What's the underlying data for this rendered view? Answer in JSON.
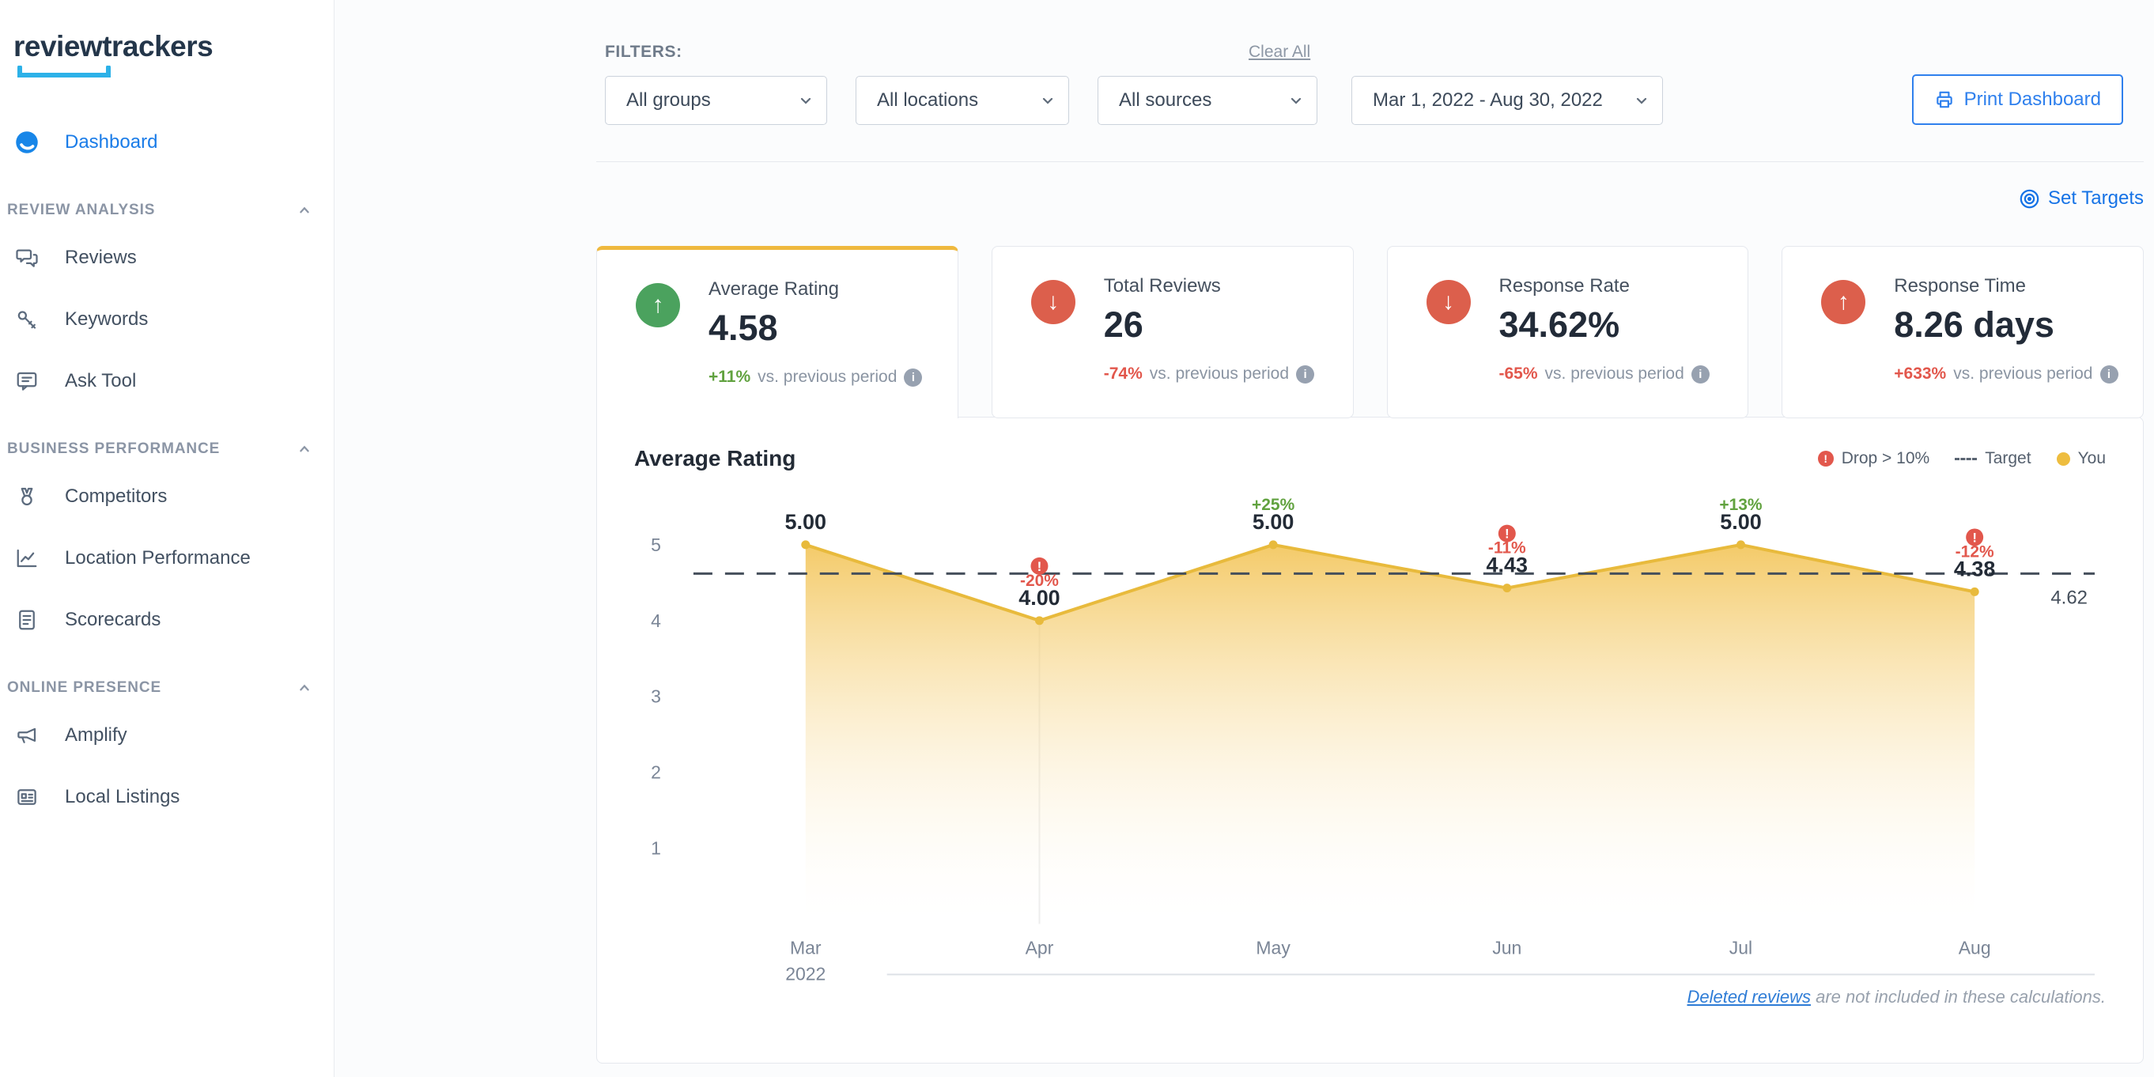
{
  "brand": {
    "logo": "reviewtrackers"
  },
  "sidebar": {
    "dashboard_label": "Dashboard",
    "sections": [
      {
        "title": "REVIEW ANALYSIS",
        "items": [
          {
            "label": "Reviews"
          },
          {
            "label": "Keywords"
          },
          {
            "label": "Ask Tool"
          }
        ]
      },
      {
        "title": "BUSINESS PERFORMANCE",
        "items": [
          {
            "label": "Competitors"
          },
          {
            "label": "Location Performance"
          },
          {
            "label": "Scorecards"
          }
        ]
      },
      {
        "title": "ONLINE PRESENCE",
        "items": [
          {
            "label": "Amplify"
          },
          {
            "label": "Local Listings"
          }
        ]
      }
    ]
  },
  "filters": {
    "label": "FILTERS:",
    "clear_all": "Clear All",
    "dropdowns": [
      "All groups",
      "All locations",
      "All sources"
    ],
    "date_range": "Mar 1, 2022 - Aug 30, 2022",
    "print_button": "Print Dashboard",
    "set_targets": "Set Targets"
  },
  "kpis": [
    {
      "title": "Average Rating",
      "value": "4.58",
      "delta": "+11%",
      "suffix": "vs. previous period",
      "arrow": "up",
      "circle_color": "#4ba25e",
      "delta_color": "#61a23f",
      "active": true
    },
    {
      "title": "Total Reviews",
      "value": "26",
      "delta": "-74%",
      "suffix": "vs. previous period",
      "arrow": "down",
      "circle_color": "#dc5f4c",
      "delta_color": "#e2574c",
      "active": false
    },
    {
      "title": "Response Rate",
      "value": "34.62%",
      "delta": "-65%",
      "suffix": "vs. previous period",
      "arrow": "down",
      "circle_color": "#dc5f4c",
      "delta_color": "#e2574c",
      "active": false
    },
    {
      "title": "Response Time",
      "value": "8.26 days",
      "delta": "+633%",
      "suffix": "vs. previous period",
      "arrow": "up",
      "circle_color": "#dc5f4c",
      "delta_color": "#e2574c",
      "active": false
    }
  ],
  "chart_data": {
    "type": "area",
    "title": "Average Rating",
    "x": [
      "Mar",
      "Apr",
      "May",
      "Jun",
      "Jul",
      "Aug"
    ],
    "x_year": "2022",
    "values": [
      5.0,
      4.0,
      5.0,
      4.43,
      5.0,
      4.38
    ],
    "point_labels": [
      "5.00",
      "4.00",
      "5.00",
      "4.43",
      "5.00",
      "4.38"
    ],
    "deltas": [
      "",
      "-20%",
      "+25%",
      "-11%",
      "+13%",
      "-12%"
    ],
    "delta_colors": [
      "",
      "red",
      "green",
      "red",
      "green",
      "red"
    ],
    "alerts": [
      false,
      true,
      false,
      true,
      false,
      true
    ],
    "target": 4.62,
    "target_label": "4.62",
    "ylim": [
      0,
      5
    ],
    "yticks": [
      5,
      4,
      3,
      2,
      1
    ],
    "line_color": "#e8ba3c",
    "area_top_color": "#f2c14e",
    "legend": [
      {
        "label": "Drop > 10%",
        "icon": "alert-icon"
      },
      {
        "label": "Target",
        "icon": "dashed-line-icon"
      },
      {
        "label": "You",
        "icon": "yellow-dot-icon"
      }
    ],
    "legend_position": "top-right",
    "grid": false
  },
  "footer": {
    "link_text": "Deleted reviews",
    "rest_text": " are not included in these calculations."
  }
}
